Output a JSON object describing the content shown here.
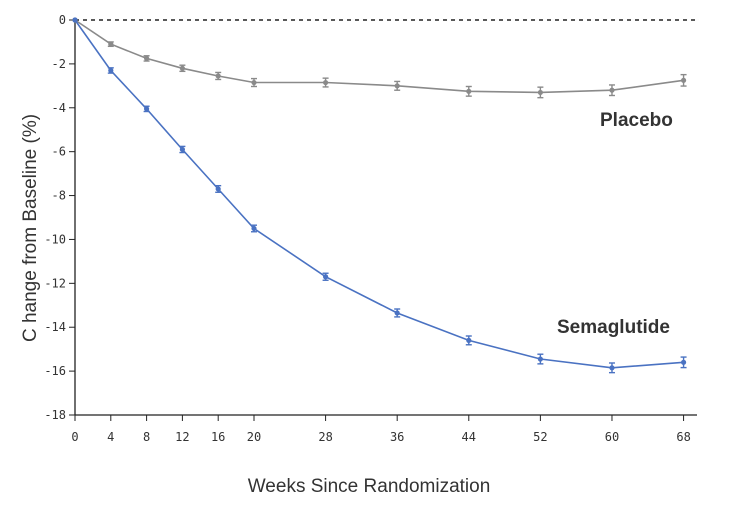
{
  "chart_data": {
    "type": "line",
    "title": "",
    "xlabel": "Weeks Since Randomization",
    "ylabel": "C hange from Baseline (%)",
    "x": [
      0,
      4,
      8,
      12,
      16,
      20,
      28,
      36,
      44,
      52,
      60,
      68
    ],
    "x_ticks": [
      "0",
      "4",
      "8",
      "12",
      "16",
      "20",
      "28",
      "36",
      "44",
      "52",
      "60",
      "68"
    ],
    "xlim": [
      0,
      69.5
    ],
    "ylim": [
      -18,
      0
    ],
    "y_ticks": [
      "0",
      "-2",
      "-4",
      "-6",
      "-8",
      "-10",
      "-12",
      "-14",
      "-16",
      "-18"
    ],
    "y_tick_values": [
      0,
      -2,
      -4,
      -6,
      -8,
      -10,
      -12,
      -14,
      -16,
      -18
    ],
    "grid": false,
    "reference_line": {
      "y": 0,
      "style": "dashed",
      "color": "#222222"
    },
    "series": [
      {
        "name": "Placebo",
        "color": "#8a8a8a",
        "values": [
          0,
          -1.1,
          -1.75,
          -2.2,
          -2.55,
          -2.85,
          -2.85,
          -3.0,
          -3.25,
          -3.3,
          -3.2,
          -2.75
        ],
        "error": [
          0,
          0.1,
          0.12,
          0.14,
          0.16,
          0.18,
          0.2,
          0.2,
          0.22,
          0.24,
          0.24,
          0.26
        ]
      },
      {
        "name": "Semaglutide",
        "color": "#4a72c2",
        "values": [
          0,
          -2.3,
          -4.05,
          -5.9,
          -7.7,
          -9.5,
          -11.7,
          -13.35,
          -14.6,
          -15.45,
          -15.85,
          -15.6
        ],
        "error": [
          0,
          0.12,
          0.12,
          0.14,
          0.15,
          0.15,
          0.16,
          0.18,
          0.2,
          0.22,
          0.22,
          0.24
        ]
      }
    ]
  }
}
